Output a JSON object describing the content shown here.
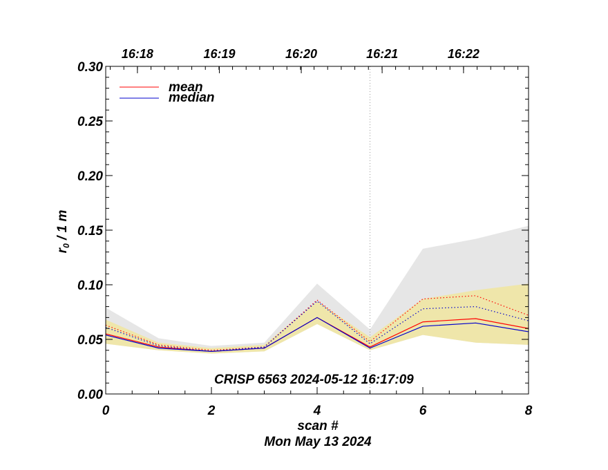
{
  "chart_data": {
    "type": "line",
    "xlabel": "scan #",
    "ylabel_main": "r",
    "ylabel_sub": "0",
    "ylabel_unit": " / 1 m",
    "subtitle": "Mon May 13 2024",
    "annotation": "CRISP 6563 2024-05-12 16:17:09",
    "xlim": [
      0,
      8
    ],
    "ylim": [
      0.0,
      0.3
    ],
    "x_ticks": [
      "0",
      "2",
      "4",
      "6",
      "8"
    ],
    "x_tick_values": [
      0,
      2,
      4,
      6,
      8
    ],
    "y_ticks": [
      "0.00",
      "0.05",
      "0.10",
      "0.15",
      "0.20",
      "0.25",
      "0.30"
    ],
    "y_tick_values": [
      0.0,
      0.05,
      0.1,
      0.15,
      0.2,
      0.25,
      0.3
    ],
    "time_ticks": [
      "16:18",
      "16:19",
      "16:20",
      "16:21",
      "16:22"
    ],
    "time_tick_scan": [
      0.6,
      2.15,
      3.7,
      5.23,
      6.77
    ],
    "marker_line_scan": 5,
    "x": [
      0,
      1,
      2,
      3,
      4,
      5,
      6,
      7,
      8
    ],
    "legend": [
      {
        "name": "mean",
        "color": "#ff0000"
      },
      {
        "name": "median",
        "color": "#0000cc"
      }
    ],
    "series": [
      {
        "name": "mean",
        "color": "#ff0000",
        "style": "solid",
        "values": [
          0.055,
          0.043,
          0.039,
          0.042,
          0.07,
          0.043,
          0.066,
          0.069,
          0.06
        ]
      },
      {
        "name": "median",
        "color": "#0000cc",
        "style": "solid",
        "values": [
          0.054,
          0.042,
          0.039,
          0.042,
          0.07,
          0.042,
          0.062,
          0.065,
          0.057
        ]
      },
      {
        "color": "#ff0000",
        "style": "dotted",
        "values": [
          0.063,
          0.045,
          0.04,
          0.043,
          0.086,
          0.048,
          0.087,
          0.09,
          0.072
        ]
      },
      {
        "color": "#0000cc",
        "style": "dotted",
        "values": [
          0.061,
          0.044,
          0.039,
          0.043,
          0.085,
          0.046,
          0.078,
          0.08,
          0.067
        ]
      }
    ],
    "bands": [
      {
        "color": "#e6e6e6",
        "lower": [
          0.046,
          0.04,
          0.037,
          0.039,
          0.064,
          0.04,
          0.054,
          0.047,
          0.045
        ],
        "upper": [
          0.079,
          0.051,
          0.044,
          0.047,
          0.101,
          0.059,
          0.133,
          0.142,
          0.154
        ]
      },
      {
        "color": "#efe6aa",
        "lower": [
          0.046,
          0.04,
          0.037,
          0.039,
          0.064,
          0.04,
          0.054,
          0.047,
          0.045
        ],
        "upper": [
          0.068,
          0.047,
          0.042,
          0.045,
          0.085,
          0.052,
          0.087,
          0.095,
          0.101
        ]
      }
    ]
  }
}
